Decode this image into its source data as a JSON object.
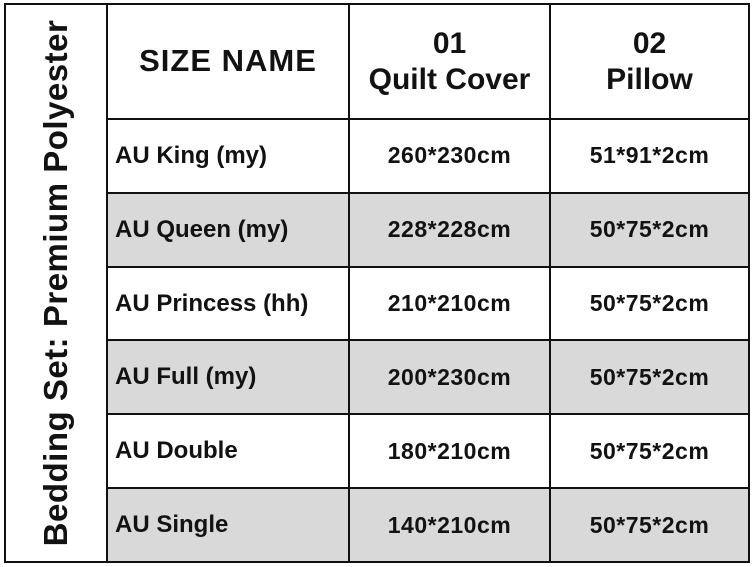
{
  "product_label": "Bedding Set: Premium Polyester",
  "table": {
    "headers": {
      "size_name": "SIZE NAME",
      "quilt_num": "01",
      "quilt_label": "Quilt Cover",
      "pillow_num": "02",
      "pillow_label": "Pillow"
    },
    "rows": [
      {
        "name": "AU King (my)",
        "quilt": "260*230cm",
        "pillow": "51*91*2cm"
      },
      {
        "name": "AU Queen (my)",
        "quilt": "228*228cm",
        "pillow": "50*75*2cm"
      },
      {
        "name": "AU Princess (hh)",
        "quilt": "210*210cm",
        "pillow": "50*75*2cm"
      },
      {
        "name": "AU Full (my)",
        "quilt": "200*230cm",
        "pillow": "50*75*2cm"
      },
      {
        "name": "AU Double",
        "quilt": "180*210cm",
        "pillow": "50*75*2cm"
      },
      {
        "name": "AU Single",
        "quilt": "140*210cm",
        "pillow": "50*75*2cm"
      }
    ]
  },
  "colors": {
    "background": "#ffffff",
    "row_alt": "#d9d9d9",
    "line": "#111111",
    "text": "#121212"
  }
}
